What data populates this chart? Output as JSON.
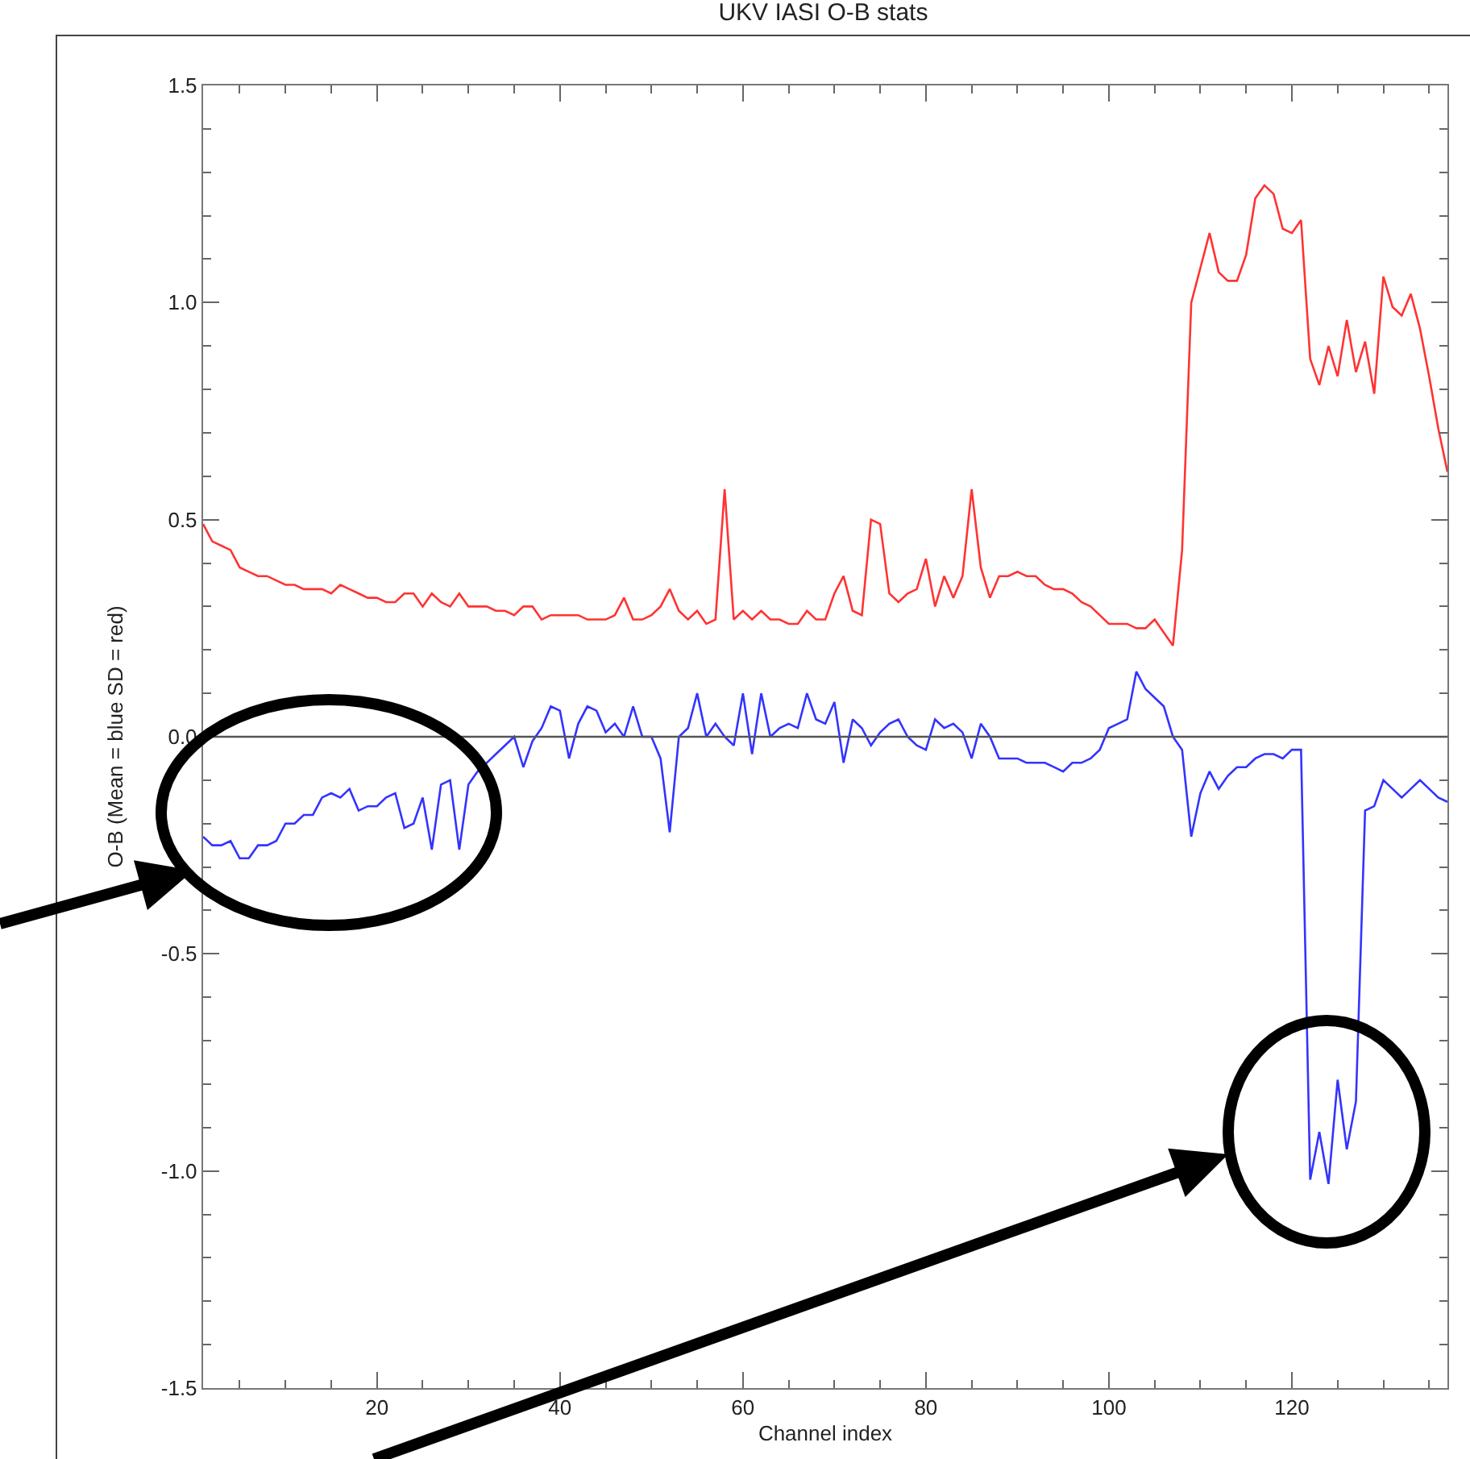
{
  "chart_data": {
    "type": "line",
    "title": "UKV IASI O-B stats",
    "xlabel": "Channel index",
    "ylabel": "O-B (Mean = blue SD = red)",
    "x": [
      1,
      2,
      3,
      4,
      5,
      6,
      7,
      8,
      9,
      10,
      11,
      12,
      13,
      14,
      15,
      16,
      17,
      18,
      19,
      20,
      21,
      22,
      23,
      24,
      25,
      26,
      27,
      28,
      29,
      30,
      31,
      32,
      33,
      34,
      35,
      36,
      37,
      38,
      39,
      40,
      41,
      42,
      43,
      44,
      45,
      46,
      47,
      48,
      49,
      50,
      51,
      52,
      53,
      54,
      55,
      56,
      57,
      58,
      59,
      60,
      61,
      62,
      63,
      64,
      65,
      66,
      67,
      68,
      69,
      70,
      71,
      72,
      73,
      74,
      75,
      76,
      77,
      78,
      79,
      80,
      81,
      82,
      83,
      84,
      85,
      86,
      87,
      88,
      89,
      90,
      91,
      92,
      93,
      94,
      95,
      96,
      97,
      98,
      99,
      100,
      101,
      102,
      103,
      104,
      105,
      106,
      107,
      108,
      109,
      110,
      111,
      112,
      113,
      114,
      115,
      116,
      117,
      118,
      119,
      120,
      121,
      122,
      123,
      124,
      125,
      126,
      127,
      128,
      129,
      130,
      131,
      132,
      133,
      134,
      135,
      136,
      137
    ],
    "series": [
      {
        "color": "#ff3333",
        "values": [
          0.49,
          0.45,
          0.44,
          0.43,
          0.39,
          0.38,
          0.37,
          0.37,
          0.36,
          0.35,
          0.35,
          0.34,
          0.34,
          0.34,
          0.33,
          0.35,
          0.34,
          0.33,
          0.32,
          0.32,
          0.31,
          0.31,
          0.33,
          0.33,
          0.3,
          0.33,
          0.31,
          0.3,
          0.33,
          0.3,
          0.3,
          0.3,
          0.29,
          0.29,
          0.28,
          0.3,
          0.3,
          0.27,
          0.28,
          0.28,
          0.28,
          0.28,
          0.27,
          0.27,
          0.27,
          0.28,
          0.32,
          0.27,
          0.27,
          0.28,
          0.3,
          0.34,
          0.29,
          0.27,
          0.29,
          0.26,
          0.27,
          0.57,
          0.27,
          0.29,
          0.27,
          0.29,
          0.27,
          0.27,
          0.26,
          0.26,
          0.29,
          0.27,
          0.27,
          0.33,
          0.37,
          0.29,
          0.28,
          0.5,
          0.49,
          0.33,
          0.31,
          0.33,
          0.34,
          0.41,
          0.3,
          0.37,
          0.32,
          0.37,
          0.57,
          0.39,
          0.32,
          0.37,
          0.37,
          0.38,
          0.37,
          0.37,
          0.35,
          0.34,
          0.34,
          0.33,
          0.31,
          0.3,
          0.28,
          0.26,
          0.26,
          0.26,
          0.25,
          0.25,
          0.27,
          0.24,
          0.21,
          0.43,
          1.0,
          1.08,
          1.16,
          1.07,
          1.05,
          1.05,
          1.11,
          1.24,
          1.27,
          1.25,
          1.17,
          1.16,
          1.19,
          0.87,
          0.81,
          0.9,
          0.83,
          0.96,
          0.84,
          0.91,
          0.79,
          1.06,
          0.99,
          0.97,
          1.02,
          0.94,
          0.83,
          0.71,
          0.61
        ]
      },
      {
        "color": "#3333ff",
        "values": [
          -0.23,
          -0.25,
          -0.25,
          -0.24,
          -0.28,
          -0.28,
          -0.25,
          -0.25,
          -0.24,
          -0.2,
          -0.2,
          -0.18,
          -0.18,
          -0.14,
          -0.13,
          -0.14,
          -0.12,
          -0.17,
          -0.16,
          -0.16,
          -0.14,
          -0.13,
          -0.21,
          -0.2,
          -0.14,
          -0.26,
          -0.11,
          -0.1,
          -0.26,
          -0.11,
          -0.08,
          -0.06,
          -0.04,
          -0.02,
          0.0,
          -0.07,
          -0.01,
          0.02,
          0.07,
          0.06,
          -0.05,
          0.03,
          0.07,
          0.06,
          0.01,
          0.03,
          0.0,
          0.07,
          0.0,
          0.0,
          -0.05,
          -0.22,
          0.0,
          0.02,
          0.1,
          0.0,
          0.03,
          0.0,
          -0.02,
          0.1,
          -0.04,
          0.1,
          0.0,
          0.02,
          0.03,
          0.02,
          0.1,
          0.04,
          0.03,
          0.08,
          -0.06,
          0.04,
          0.02,
          -0.02,
          0.01,
          0.03,
          0.04,
          0.0,
          -0.02,
          -0.03,
          0.04,
          0.02,
          0.03,
          0.01,
          -0.05,
          0.03,
          0.0,
          -0.05,
          -0.05,
          -0.05,
          -0.06,
          -0.06,
          -0.06,
          -0.07,
          -0.08,
          -0.06,
          -0.06,
          -0.05,
          -0.03,
          0.02,
          0.03,
          0.04,
          0.15,
          0.11,
          0.09,
          0.07,
          0.0,
          -0.03,
          -0.23,
          -0.13,
          -0.08,
          -0.12,
          -0.09,
          -0.07,
          -0.07,
          -0.05,
          -0.04,
          -0.04,
          -0.05,
          -0.03,
          -0.03,
          -1.02,
          -0.91,
          -1.03,
          -0.79,
          -0.95,
          -0.84,
          -0.17,
          -0.16,
          -0.1,
          -0.12,
          -0.14,
          -0.12,
          -0.1,
          -0.12,
          -0.14,
          -0.15
        ]
      }
    ],
    "xlim": [
      1,
      137
    ],
    "xticks": [
      {
        "value": 5,
        "label": null
      },
      {
        "value": 10,
        "label": null
      },
      {
        "value": 15,
        "label": null
      },
      20,
      {
        "value": 25,
        "label": null
      },
      {
        "value": 30,
        "label": null
      },
      {
        "value": 35,
        "label": null
      },
      40,
      {
        "value": 45,
        "label": null
      },
      {
        "value": 50,
        "label": null
      },
      {
        "value": 55,
        "label": null
      },
      60,
      {
        "value": 65,
        "label": null
      },
      {
        "value": 70,
        "label": null
      },
      {
        "value": 75,
        "label": null
      },
      80,
      {
        "value": 85,
        "label": null
      },
      {
        "value": 90,
        "label": null
      },
      {
        "value": 95,
        "label": null
      },
      100,
      {
        "value": 105,
        "label": null
      },
      {
        "value": 110,
        "label": null
      },
      {
        "value": 115,
        "label": null
      },
      120,
      {
        "value": 125,
        "label": null
      },
      {
        "value": 130,
        "label": null
      },
      {
        "value": 135,
        "label": null
      }
    ],
    "ylim": [
      -1.5,
      1.5
    ],
    "yticks": [
      {
        "value": -1.5,
        "label": "-1.5"
      },
      {
        "value": -1.4,
        "label": null
      },
      {
        "value": -1.3,
        "label": null
      },
      {
        "value": -1.2,
        "label": null
      },
      {
        "value": -1.1,
        "label": null
      },
      {
        "value": -1,
        "label": "-1.0"
      },
      {
        "value": -0.9,
        "label": null
      },
      {
        "value": -0.8,
        "label": null
      },
      {
        "value": -0.7,
        "label": null
      },
      {
        "value": -0.6,
        "label": null
      },
      {
        "value": -0.5,
        "label": "-0.5"
      },
      {
        "value": -0.4,
        "label": null
      },
      {
        "value": -0.3,
        "label": null
      },
      {
        "value": -0.2,
        "label": null
      },
      {
        "value": -0.1,
        "label": null
      },
      {
        "value": 0,
        "label": "0.0"
      },
      {
        "value": 0.1,
        "label": null
      },
      {
        "value": 0.2,
        "label": null
      },
      {
        "value": 0.3,
        "label": null
      },
      {
        "value": 0.4,
        "label": null
      },
      {
        "value": 0.5,
        "label": "0.5"
      },
      {
        "value": 0.6,
        "label": null
      },
      {
        "value": 0.7,
        "label": null
      },
      {
        "value": 0.8,
        "label": null
      },
      {
        "value": 0.9,
        "label": null
      },
      {
        "value": 1,
        "label": "1.0"
      },
      {
        "value": 1.1,
        "label": null
      },
      {
        "value": 1.2,
        "label": null
      },
      {
        "value": 1.3,
        "label": null
      },
      {
        "value": 1.4,
        "label": null
      },
      {
        "value": 1.5,
        "label": "1.5"
      }
    ],
    "ref_lines": [
      {
        "axis": "y",
        "value": 0,
        "color": "#555555"
      }
    ],
    "grid": false,
    "marker": "none",
    "line_style": "solid"
  }
}
